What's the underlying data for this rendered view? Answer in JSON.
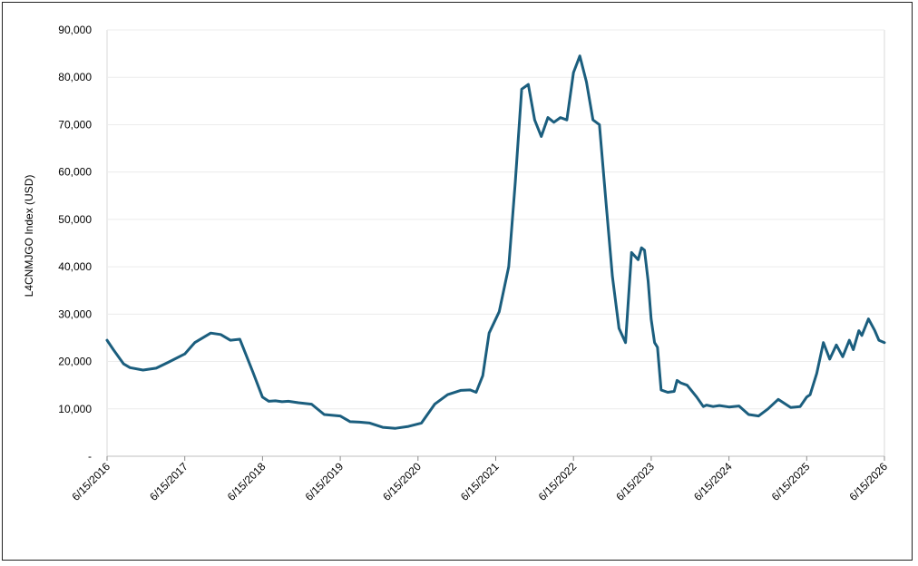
{
  "chart_data": {
    "type": "line",
    "title": "",
    "xlabel": "",
    "ylabel": "L4CNMJGO Index (USD)",
    "ylim": [
      0,
      90000
    ],
    "y_ticks": [
      {
        "value": 0,
        "label": "-"
      },
      {
        "value": 10000,
        "label": "10,000"
      },
      {
        "value": 20000,
        "label": "20,000"
      },
      {
        "value": 30000,
        "label": "30,000"
      },
      {
        "value": 40000,
        "label": "40,000"
      },
      {
        "value": 50000,
        "label": "50,000"
      },
      {
        "value": 60000,
        "label": "60,000"
      },
      {
        "value": 70000,
        "label": "70,000"
      },
      {
        "value": 80000,
        "label": "80,000"
      },
      {
        "value": 90000,
        "label": "90,000"
      }
    ],
    "x_ticks": [
      "6/15/2016",
      "6/15/2017",
      "6/15/2018",
      "6/15/2019",
      "6/15/2020",
      "6/15/2021",
      "6/15/2022",
      "6/15/2023",
      "6/15/2024",
      "6/15/2025",
      "6/15/2026"
    ],
    "xlim": [
      "2016-06-15",
      "2026-06-15"
    ],
    "grid": true,
    "legend": "none",
    "color": "#1b5e7e",
    "series": [
      {
        "x": [
          "2016-06-15",
          "2016-07-15",
          "2016-09-01",
          "2016-10-01",
          "2016-12-01",
          "2017-02-01",
          "2017-04-01",
          "2017-06-15",
          "2017-08-01",
          "2017-10-15",
          "2017-12-01",
          "2018-01-15",
          "2018-03-01",
          "2018-05-01",
          "2018-06-15",
          "2018-07-15",
          "2018-08-15",
          "2018-09-15",
          "2018-10-15",
          "2018-12-01",
          "2019-02-01",
          "2019-04-01",
          "2019-06-15",
          "2019-08-01",
          "2019-09-15",
          "2019-11-01",
          "2020-01-01",
          "2020-03-01",
          "2020-05-01",
          "2020-07-01",
          "2020-09-01",
          "2020-11-01",
          "2021-01-01",
          "2021-02-15",
          "2021-03-15",
          "2021-04-15",
          "2021-05-15",
          "2021-07-01",
          "2021-08-15",
          "2021-09-15",
          "2021-10-15",
          "2021-11-15",
          "2021-12-15",
          "2022-01-15",
          "2022-02-15",
          "2022-03-15",
          "2022-04-15",
          "2022-05-15",
          "2022-06-15",
          "2022-07-15",
          "2022-08-15",
          "2022-09-15",
          "2022-10-15",
          "2022-11-15",
          "2022-12-15",
          "2023-01-15",
          "2023-02-15",
          "2023-03-15",
          "2023-04-15",
          "2023-05-01",
          "2023-05-15",
          "2023-06-01",
          "2023-06-15",
          "2023-07-01",
          "2023-07-15",
          "2023-08-01",
          "2023-09-01",
          "2023-10-01",
          "2023-10-15",
          "2023-11-01",
          "2023-12-01",
          "2024-01-15",
          "2024-02-15",
          "2024-03-01",
          "2024-04-01",
          "2024-05-01",
          "2024-06-15",
          "2024-08-01",
          "2024-09-15",
          "2024-11-01",
          "2024-12-15",
          "2025-02-01",
          "2025-04-01",
          "2025-05-15",
          "2025-06-15",
          "2025-07-01",
          "2025-08-01",
          "2025-09-01",
          "2025-10-01",
          "2025-11-01",
          "2025-12-01",
          "2026-01-01",
          "2026-01-20",
          "2026-02-15",
          "2026-03-01",
          "2026-04-01",
          "2026-05-01",
          "2026-05-20",
          "2026-06-15"
        ],
        "values": [
          24500,
          22500,
          19500,
          18700,
          18200,
          18600,
          19900,
          21600,
          24000,
          26000,
          25700,
          24500,
          24700,
          17800,
          12500,
          11600,
          11700,
          11500,
          11600,
          11300,
          11000,
          8800,
          8500,
          7300,
          7200,
          7000,
          6100,
          5900,
          6300,
          7000,
          11000,
          13000,
          13900,
          14000,
          13500,
          17000,
          26000,
          30500,
          40000,
          58000,
          77500,
          78500,
          71000,
          67500,
          71500,
          70500,
          71500,
          71000,
          81000,
          84500,
          79000,
          71000,
          70000,
          53500,
          38000,
          27000,
          24000,
          43000,
          41500,
          44000,
          43500,
          37000,
          29000,
          24000,
          23000,
          14000,
          13500,
          13700,
          16000,
          15500,
          15000,
          12500,
          10500,
          10800,
          10500,
          10700,
          10400,
          10600,
          8800,
          8500,
          10000,
          12000,
          10300,
          10500,
          12500,
          13000,
          17500,
          24000,
          20500,
          23500,
          21000,
          24500,
          22500,
          26500,
          25500,
          29000,
          26500,
          24500,
          24000
        ]
      }
    ]
  }
}
